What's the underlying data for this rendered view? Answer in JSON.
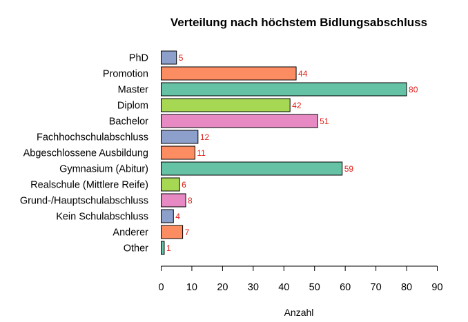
{
  "chart_data": {
    "type": "bar",
    "orientation": "horizontal",
    "title": "Verteilung nach höchstem Bidlungsabschluss",
    "xlabel": "Anzahl",
    "ylabel": "",
    "xlim": [
      0,
      90
    ],
    "xticks": [
      0,
      10,
      20,
      30,
      40,
      50,
      60,
      70,
      80,
      90
    ],
    "grid": false,
    "categories": [
      "PhD",
      "Promotion",
      "Master",
      "Diplom",
      "Bachelor",
      "Fachhochschulabschluss",
      "Abgeschlossene Ausbildung",
      "Gymnasium (Abitur)",
      "Realschule (Mittlere Reife)",
      "Grund-/Hauptschulabschluss",
      "Kein Schulabschluss",
      "Anderer",
      "Other"
    ],
    "values": [
      5,
      44,
      80,
      42,
      51,
      12,
      11,
      59,
      6,
      8,
      4,
      7,
      1
    ],
    "colors": [
      "#8DA0CB",
      "#FC8D62",
      "#66C2A5",
      "#A6D854",
      "#E78AC3",
      "#8DA0CB",
      "#FC8D62",
      "#66C2A5",
      "#A6D854",
      "#E78AC3",
      "#8DA0CB",
      "#FC8D62",
      "#66C2A5"
    ],
    "label_color": "#E0201A",
    "bar_outline": "#000000"
  }
}
